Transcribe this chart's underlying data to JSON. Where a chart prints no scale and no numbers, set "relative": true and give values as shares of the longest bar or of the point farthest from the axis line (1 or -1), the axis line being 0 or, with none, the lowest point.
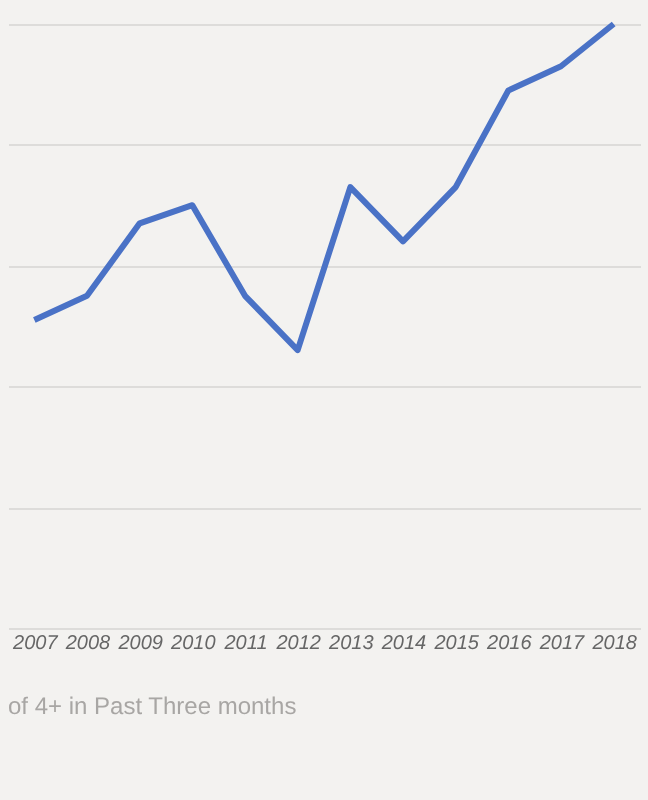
{
  "chart_data": {
    "type": "line",
    "relative": true,
    "grid": "y",
    "categories": [
      "2007",
      "2008",
      "2009",
      "2010",
      "2011",
      "2012",
      "2013",
      "2014",
      "2015",
      "2016",
      "2017",
      "2018"
    ],
    "series": [
      {
        "color": "#4a72c6",
        "values": [
          0.51,
          0.55,
          0.67,
          0.7,
          0.55,
          0.46,
          0.73,
          0.64,
          0.73,
          0.89,
          0.93,
          1
        ]
      }
    ],
    "annotations": [
      "of 4+ in Past Three months"
    ]
  }
}
